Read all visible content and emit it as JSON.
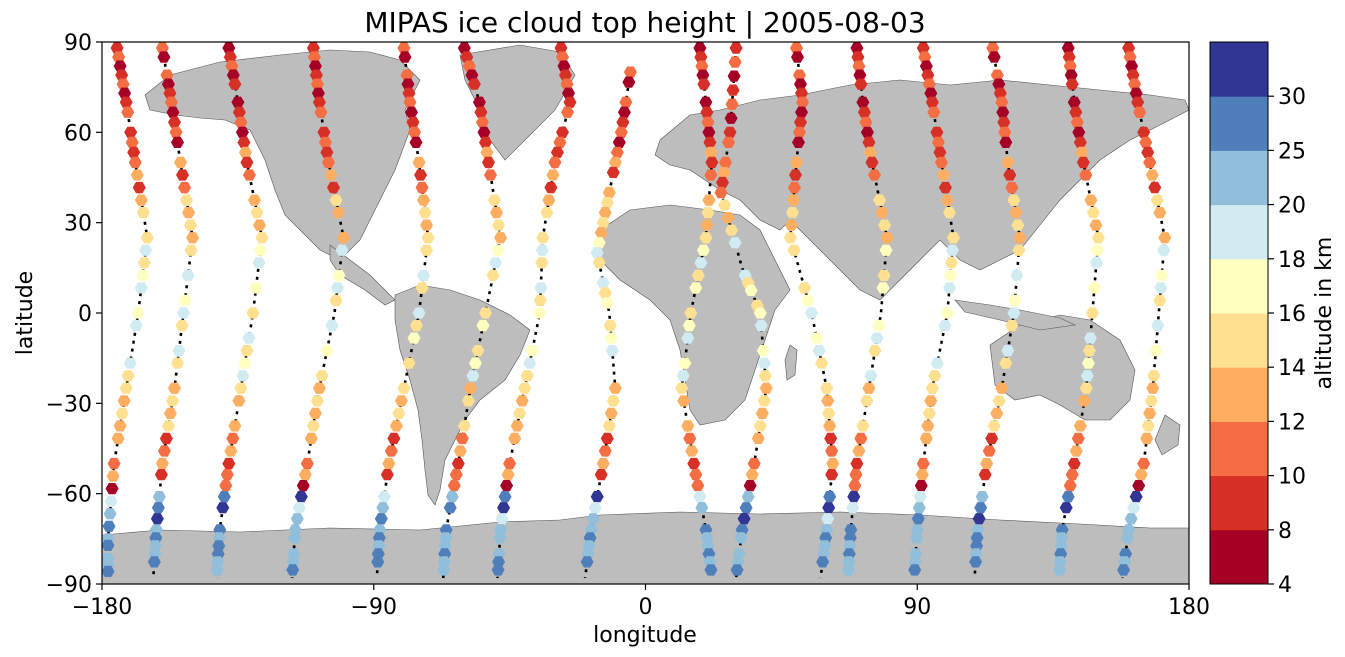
{
  "chart_data": {
    "type": "scatter",
    "title": "MIPAS ice cloud top height | 2005-08-03",
    "xlabel": "longitude",
    "ylabel": "latitude",
    "xlim": [
      -180,
      180
    ],
    "ylim": [
      -90,
      90
    ],
    "xticks": [
      "−180",
      "−90",
      "0",
      "90",
      "180"
    ],
    "yticks": [
      "90",
      "60",
      "30",
      "0",
      "−30",
      "−60",
      "−90"
    ],
    "colorbar": {
      "label": "altitude in km",
      "ticks": [
        "4",
        "8",
        "10",
        "12",
        "14",
        "16",
        "18",
        "20",
        "25",
        "30"
      ],
      "bounds": [
        4,
        8,
        10,
        12,
        14,
        16,
        18,
        20,
        25,
        30
      ],
      "colors": [
        "#a50026",
        "#d73027",
        "#f46d43",
        "#fdae61",
        "#fee090",
        "#ffffbf",
        "#d1ebf3",
        "#91bfdb",
        "#4f7fba",
        "#313695"
      ]
    },
    "land_color": "#bdbdbd",
    "orbit_tracks": [
      {
        "points": [
          [
            -175,
            88
          ],
          [
            -172,
            70
          ],
          [
            -169,
            50
          ],
          [
            -165,
            25
          ],
          [
            -168,
            0
          ],
          [
            -172,
            -25
          ],
          [
            -176,
            -50
          ],
          [
            -178,
            -75
          ],
          [
            -178,
            -88
          ]
        ]
      },
      {
        "points": [
          [
            -160,
            88
          ],
          [
            -157,
            70
          ],
          [
            -154,
            50
          ],
          [
            -150,
            25
          ],
          [
            -153,
            0
          ],
          [
            -156,
            -25
          ],
          [
            -160,
            -50
          ],
          [
            -162,
            -72
          ],
          [
            -163,
            -88
          ]
        ]
      },
      {
        "points": [
          [
            -138,
            88
          ],
          [
            -135,
            70
          ],
          [
            -132,
            50
          ],
          [
            -127,
            25
          ],
          [
            -130,
            0
          ],
          [
            -134,
            -25
          ],
          [
            -138,
            -50
          ],
          [
            -141,
            -72
          ],
          [
            -142,
            -88
          ]
        ]
      },
      {
        "points": [
          [
            -110,
            88
          ],
          [
            -108,
            70
          ],
          [
            -105,
            50
          ],
          [
            -100,
            25
          ],
          [
            -103,
            0
          ],
          [
            -108,
            -25
          ],
          [
            -112,
            -50
          ],
          [
            -116,
            -72
          ],
          [
            -117,
            -88
          ]
        ]
      },
      {
        "points": [
          [
            -80,
            88
          ],
          [
            -78,
            70
          ],
          [
            -75,
            50
          ],
          [
            -72,
            25
          ],
          [
            -75,
            0
          ],
          [
            -80,
            -25
          ],
          [
            -85,
            -50
          ],
          [
            -88,
            -72
          ],
          [
            -89,
            -88
          ]
        ]
      },
      {
        "points": [
          [
            -60,
            88
          ],
          [
            -55,
            70
          ],
          [
            -52,
            50
          ],
          [
            -48,
            25
          ],
          [
            -53,
            0
          ],
          [
            -58,
            -25
          ],
          [
            -62,
            -50
          ],
          [
            -66,
            -72
          ],
          [
            -67,
            -88
          ]
        ]
      },
      {
        "points": [
          [
            -28,
            88
          ],
          [
            -25,
            70
          ],
          [
            -30,
            50
          ],
          [
            -34,
            25
          ],
          [
            -35,
            0
          ],
          [
            -40,
            -25
          ],
          [
            -45,
            -50
          ],
          [
            -48,
            -72
          ],
          [
            -49,
            -88
          ]
        ]
      },
      {
        "points": [
          [
            -5,
            80
          ],
          [
            -8,
            60
          ],
          [
            -12,
            40
          ],
          [
            -16,
            20
          ],
          [
            -12,
            0
          ],
          [
            -10,
            -25
          ],
          [
            -14,
            -50
          ],
          [
            -18,
            -72
          ],
          [
            -20,
            -88
          ]
        ]
      },
      {
        "points": [
          [
            18,
            88
          ],
          [
            20,
            70
          ],
          [
            22,
            50
          ],
          [
            20,
            25
          ],
          [
            15,
            0
          ],
          [
            12,
            -25
          ],
          [
            16,
            -50
          ],
          [
            20,
            -72
          ],
          [
            22,
            -88
          ]
        ]
      },
      {
        "points": [
          [
            30,
            88
          ],
          [
            28,
            60
          ],
          [
            25,
            40
          ],
          [
            32,
            15
          ],
          [
            38,
            0
          ],
          [
            40,
            -25
          ],
          [
            36,
            -50
          ],
          [
            32,
            -72
          ],
          [
            30,
            -88
          ]
        ]
      },
      {
        "points": [
          [
            50,
            88
          ],
          [
            52,
            70
          ],
          [
            50,
            50
          ],
          [
            48,
            25
          ],
          [
            55,
            0
          ],
          [
            60,
            -25
          ],
          [
            62,
            -50
          ],
          [
            60,
            -72
          ],
          [
            58,
            -88
          ]
        ]
      },
      {
        "points": [
          [
            70,
            88
          ],
          [
            72,
            70
          ],
          [
            75,
            50
          ],
          [
            80,
            25
          ],
          [
            78,
            0
          ],
          [
            74,
            -25
          ],
          [
            70,
            -50
          ],
          [
            68,
            -72
          ],
          [
            67,
            -88
          ]
        ]
      },
      {
        "points": [
          [
            92,
            88
          ],
          [
            95,
            70
          ],
          [
            98,
            50
          ],
          [
            102,
            25
          ],
          [
            100,
            0
          ],
          [
            95,
            -25
          ],
          [
            92,
            -50
          ],
          [
            90,
            -72
          ],
          [
            89,
            -88
          ]
        ]
      },
      {
        "points": [
          [
            115,
            88
          ],
          [
            118,
            70
          ],
          [
            120,
            50
          ],
          [
            124,
            25
          ],
          [
            122,
            0
          ],
          [
            118,
            -25
          ],
          [
            113,
            -50
          ],
          [
            110,
            -72
          ],
          [
            109,
            -88
          ]
        ]
      },
      {
        "points": [
          [
            140,
            88
          ],
          [
            142,
            70
          ],
          [
            145,
            50
          ],
          [
            150,
            25
          ],
          [
            148,
            0
          ],
          [
            146,
            -25
          ],
          [
            142,
            -50
          ],
          [
            138,
            -72
          ],
          [
            137,
            -88
          ]
        ]
      },
      {
        "points": [
          [
            160,
            88
          ],
          [
            163,
            70
          ],
          [
            167,
            50
          ],
          [
            172,
            25
          ],
          [
            170,
            0
          ],
          [
            168,
            -25
          ],
          [
            165,
            -50
          ],
          [
            160,
            -72
          ],
          [
            158,
            -88
          ]
        ]
      }
    ]
  }
}
